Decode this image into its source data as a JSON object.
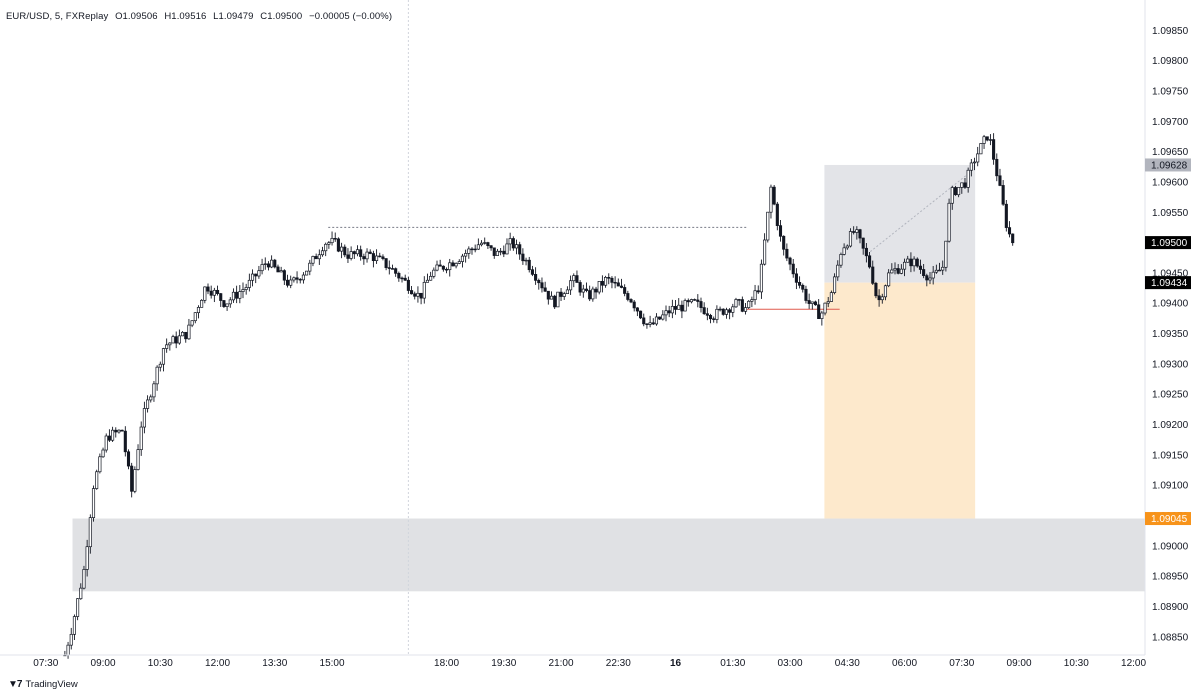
{
  "header": {
    "symbol": "EUR/USD, 5, FXReplay",
    "open": "O1.09506",
    "high": "H1.09516",
    "low": "L1.09479",
    "close": "C1.09500",
    "change": "−0.00005 (−0.00%)"
  },
  "brand": {
    "name": "TradingView",
    "logo_icon": "tradingview-logo-icon"
  },
  "chart_data": {
    "type": "candlestick",
    "symbol": "EUR/USD",
    "interval_minutes": 5,
    "ylim": [
      1.0882,
      1.099
    ],
    "y_ticks": [
      "1.09850",
      "1.09800",
      "1.09750",
      "1.09700",
      "1.09650",
      "1.09600",
      "1.09550",
      "1.09500",
      "1.09450",
      "1.09400",
      "1.09350",
      "1.09300",
      "1.09250",
      "1.09200",
      "1.09150",
      "1.09100",
      "1.09050",
      "1.09000",
      "1.08950",
      "1.08900",
      "1.08850"
    ],
    "x_ticks": [
      "07:30",
      "09:00",
      "10:30",
      "12:00",
      "13:30",
      "15:00",
      "18:00",
      "19:30",
      "21:00",
      "22:30",
      "16",
      "01:30",
      "03:00",
      "04:30",
      "06:00",
      "07:30",
      "09:00",
      "10:30",
      "12:00"
    ],
    "x_ticks_bold": [
      "16"
    ],
    "x_domain_hours": [
      6.3,
      36.3
    ],
    "price_labels": [
      {
        "value": "1.09628",
        "price": 1.09628,
        "color": "#b2b5be",
        "text_color": "#131722"
      },
      {
        "value": "1.09500",
        "price": 1.095,
        "color": "#000000",
        "text_color": "#ffffff"
      },
      {
        "value": "1.09434",
        "price": 1.09434,
        "color": "#000000",
        "text_color": "#ffffff"
      },
      {
        "value": "1.09045",
        "price": 1.09045,
        "color": "#f7931a",
        "text_color": "#ffffff"
      }
    ],
    "zones": [
      {
        "name": "demand-zone",
        "x_from": 8.2,
        "x_to": 36.3,
        "price_from": 1.08925,
        "price_to": 1.09045,
        "color": "#e0e1e4"
      },
      {
        "name": "position-target-zone",
        "x_from": 27.9,
        "x_to": 31.85,
        "price_from": 1.09434,
        "price_to": 1.09628,
        "color": "#e3e4e8"
      },
      {
        "name": "position-stop-zone",
        "x_from": 27.9,
        "x_to": 31.85,
        "price_from": 1.09045,
        "price_to": 1.09434,
        "color": "#fde9cc"
      }
    ],
    "lines": [
      {
        "name": "prior-high-line",
        "x_from": 14.9,
        "x_to": 25.87,
        "price": 1.09525,
        "color": "#787b86",
        "dash": true
      },
      {
        "name": "entry-line",
        "x_from": 25.87,
        "x_to": 28.3,
        "price": 1.0939,
        "color": "#e05a4f",
        "dash": false
      },
      {
        "name": "session-divider",
        "x": 17.0,
        "color": "#d1d4dc",
        "dash": true
      },
      {
        "name": "trade-path",
        "x_from": 29.1,
        "x_to": 31.7,
        "price_from": 1.09485,
        "price_to": 1.09615,
        "color": "#b2b5be",
        "dash": true
      }
    ],
    "anchors": [
      [
        8.0,
        1.0882
      ],
      [
        8.2,
        1.0887
      ],
      [
        8.5,
        1.0896
      ],
      [
        8.75,
        1.091
      ],
      [
        9.1,
        1.0918
      ],
      [
        9.5,
        1.0919
      ],
      [
        9.75,
        1.0909
      ],
      [
        10.0,
        1.092
      ],
      [
        10.6,
        1.0933
      ],
      [
        11.2,
        1.0935
      ],
      [
        11.7,
        1.0943
      ],
      [
        12.2,
        1.094
      ],
      [
        12.8,
        1.0943
      ],
      [
        13.3,
        1.0947
      ],
      [
        13.9,
        1.0943
      ],
      [
        14.4,
        1.0946
      ],
      [
        14.8,
        1.095
      ],
      [
        15.05,
        1.095
      ],
      [
        15.4,
        1.0948
      ],
      [
        16.0,
        1.0948
      ],
      [
        16.5,
        1.0946
      ],
      [
        17.0,
        1.0943
      ],
      [
        17.3,
        1.0941
      ],
      [
        17.6,
        1.0945
      ],
      [
        18.2,
        1.0947
      ],
      [
        18.9,
        1.095
      ],
      [
        19.3,
        1.0948
      ],
      [
        19.7,
        1.095
      ],
      [
        20.2,
        1.0946
      ],
      [
        20.8,
        1.094
      ],
      [
        21.3,
        1.0944
      ],
      [
        21.7,
        1.0941
      ],
      [
        22.2,
        1.0944
      ],
      [
        22.8,
        1.0941
      ],
      [
        23.3,
        1.0936
      ],
      [
        23.9,
        1.0939
      ],
      [
        24.5,
        1.094
      ],
      [
        25.0,
        1.0938
      ],
      [
        25.6,
        1.094
      ],
      [
        25.87,
        1.0939
      ],
      [
        26.2,
        1.0943
      ],
      [
        26.5,
        1.0959
      ],
      [
        26.8,
        1.0949
      ],
      [
        27.1,
        1.0945
      ],
      [
        27.5,
        1.094
      ],
      [
        27.8,
        1.0938
      ],
      [
        28.1,
        1.0942
      ],
      [
        28.35,
        1.0949
      ],
      [
        28.7,
        1.0952
      ],
      [
        29.1,
        1.0946
      ],
      [
        29.3,
        1.094
      ],
      [
        29.6,
        1.0945
      ],
      [
        30.2,
        1.0947
      ],
      [
        30.7,
        1.0944
      ],
      [
        31.0,
        1.0946
      ],
      [
        31.2,
        1.0958
      ],
      [
        31.6,
        1.096
      ],
      [
        31.85,
        1.0964
      ],
      [
        32.2,
        1.0968
      ],
      [
        32.4,
        1.0962
      ],
      [
        32.7,
        1.0952
      ],
      [
        32.85,
        1.095
      ]
    ]
  }
}
